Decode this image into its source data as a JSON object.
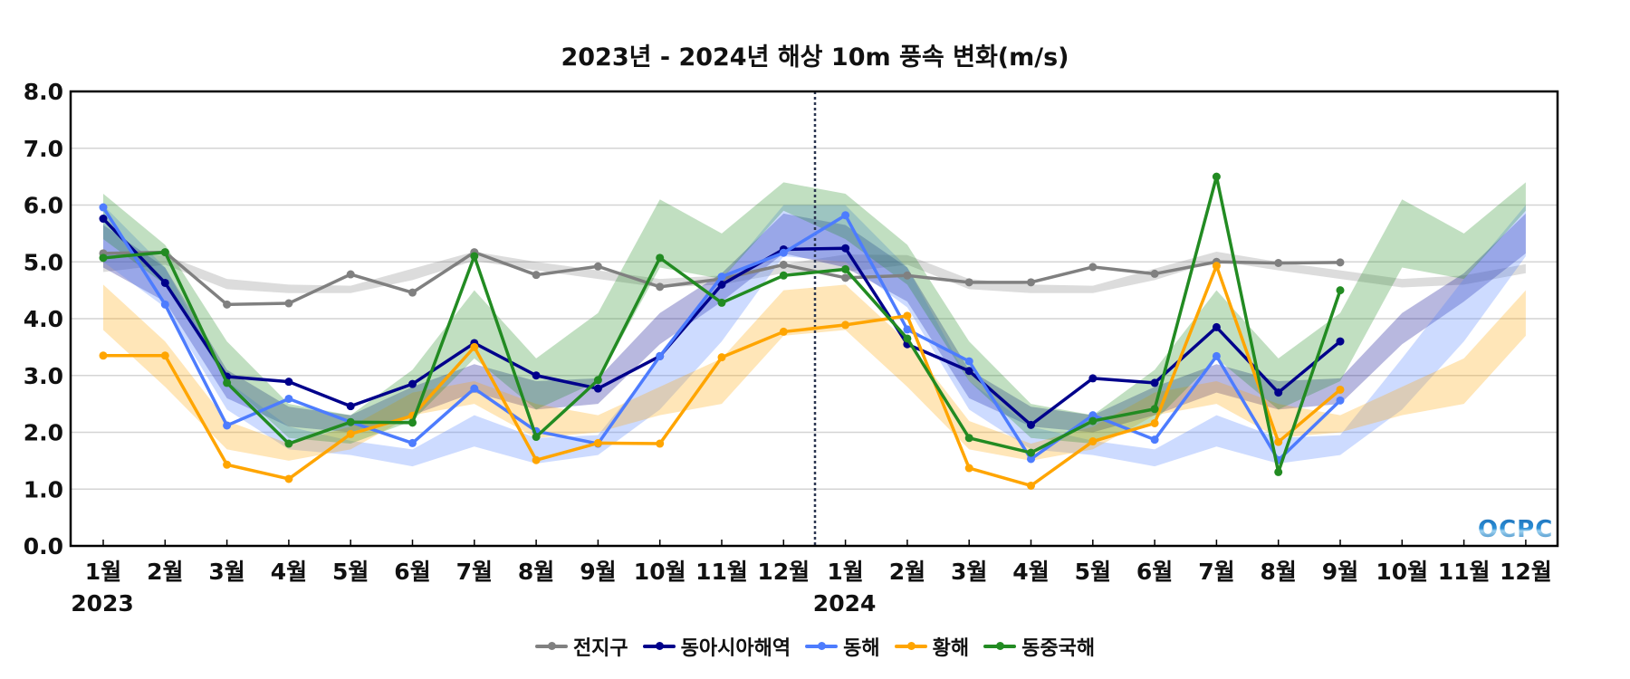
{
  "chart_data": {
    "type": "line",
    "title": "2023년 - 2024년 해상 10m 풍속 변화(m/s)",
    "xlabel": "",
    "ylabel": "",
    "ylim": [
      0,
      8
    ],
    "yticks": [
      "0.0",
      "1.0",
      "2.0",
      "3.0",
      "4.0",
      "5.0",
      "6.0",
      "7.0",
      "8.0"
    ],
    "grid": true,
    "legend_position": "bottom",
    "categories": [
      "1월",
      "2월",
      "3월",
      "4월",
      "5월",
      "6월",
      "7월",
      "8월",
      "9월",
      "10월",
      "11월",
      "12월",
      "1월",
      "2월",
      "3월",
      "4월",
      "5월",
      "6월",
      "7월",
      "8월",
      "9월",
      "10월",
      "11월",
      "12월"
    ],
    "year_labels": [
      {
        "index": 0,
        "label": "2023"
      },
      {
        "index": 12,
        "label": "2024"
      }
    ],
    "divider": "between 2023 12월 and 2024 1월 (dotted)",
    "series": [
      {
        "name": "전지구",
        "color": "#808080",
        "values": [
          5.15,
          5.17,
          4.25,
          4.27,
          4.78,
          4.46,
          5.17,
          4.77,
          4.92,
          4.56,
          4.7,
          4.95,
          4.72,
          4.76,
          4.64,
          4.64,
          4.91,
          4.79,
          5.0,
          4.98,
          4.99,
          null,
          null,
          null
        ],
        "range_monthly": {
          "lower": [
            4.82,
            4.95,
            4.52,
            4.45,
            4.45,
            4.68,
            5.02,
            4.85,
            4.7,
            4.55,
            4.6,
            4.8
          ],
          "upper": [
            5.13,
            5.12,
            4.7,
            4.6,
            4.58,
            4.88,
            5.18,
            5.0,
            4.85,
            4.7,
            4.76,
            4.96
          ]
        }
      },
      {
        "name": "동아시아해역",
        "color": "#00008b",
        "values": [
          5.76,
          4.63,
          2.98,
          2.89,
          2.46,
          2.85,
          3.57,
          3.0,
          2.77,
          3.34,
          4.6,
          5.22,
          5.24,
          3.55,
          3.08,
          2.13,
          2.95,
          2.87,
          3.85,
          2.7,
          3.6,
          null,
          null,
          null
        ],
        "range_monthly": {
          "lower": [
            4.9,
            4.3,
            2.6,
            2.1,
            2.0,
            2.3,
            2.7,
            2.4,
            2.5,
            3.55,
            4.3,
            5.15
          ],
          "upper": [
            5.65,
            4.9,
            3.1,
            2.45,
            2.3,
            2.8,
            3.2,
            2.9,
            2.95,
            4.1,
            4.8,
            5.85
          ]
        }
      },
      {
        "name": "동해",
        "color": "#4d7cfe",
        "values": [
          5.96,
          4.25,
          2.12,
          2.59,
          2.18,
          1.81,
          2.77,
          2.02,
          1.8,
          3.34,
          4.74,
          5.16,
          5.82,
          3.81,
          3.25,
          1.53,
          2.3,
          1.87,
          3.34,
          1.51,
          2.56,
          null,
          null,
          null
        ],
        "range_monthly": {
          "lower": [
            5.0,
            4.2,
            2.4,
            1.7,
            1.6,
            1.4,
            1.75,
            1.45,
            1.6,
            2.4,
            3.6,
            5.1
          ],
          "upper": [
            6.0,
            4.9,
            2.9,
            2.1,
            1.85,
            1.7,
            2.3,
            1.9,
            1.95,
            3.3,
            4.7,
            6.0
          ]
        }
      },
      {
        "name": "황해",
        "color": "#ffa500",
        "values": [
          3.35,
          3.35,
          1.43,
          1.18,
          1.97,
          2.29,
          3.5,
          1.51,
          1.81,
          1.8,
          3.32,
          3.77,
          3.89,
          4.05,
          1.37,
          1.06,
          1.84,
          2.16,
          4.93,
          1.83,
          2.75,
          null,
          null,
          null
        ],
        "range_monthly": {
          "lower": [
            3.8,
            2.8,
            1.7,
            1.5,
            1.7,
            2.3,
            2.5,
            1.9,
            2.0,
            2.3,
            2.5,
            3.7
          ],
          "upper": [
            4.6,
            3.6,
            2.2,
            1.8,
            2.1,
            2.7,
            2.9,
            2.5,
            2.3,
            2.8,
            3.3,
            4.5
          ]
        }
      },
      {
        "name": "동중국해",
        "color": "#228b22",
        "values": [
          5.07,
          5.17,
          2.87,
          1.8,
          2.18,
          2.17,
          5.1,
          1.92,
          2.92,
          5.07,
          4.28,
          4.76,
          4.87,
          3.65,
          1.9,
          1.64,
          2.2,
          2.41,
          6.5,
          1.3,
          4.5,
          null,
          null,
          null
        ],
        "range_monthly": {
          "lower": [
            5.4,
            4.6,
            2.9,
            1.9,
            1.8,
            2.2,
            3.3,
            2.4,
            2.9,
            4.9,
            4.7,
            5.9
          ],
          "upper": [
            6.2,
            5.3,
            3.6,
            2.5,
            2.3,
            3.1,
            4.5,
            3.3,
            4.1,
            6.1,
            5.5,
            6.4
          ]
        }
      }
    ]
  },
  "logo_text": "OCPC"
}
